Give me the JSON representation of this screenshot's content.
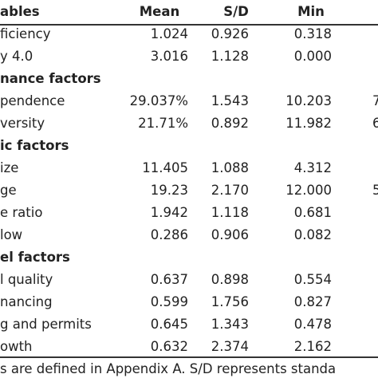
{
  "table": {
    "header": [
      "ables",
      "Mean",
      "S/D",
      "Min"
    ],
    "rows": [
      {
        "label": "ficiency",
        "cells": [
          "1.024",
          "0.926",
          "0.318"
        ]
      },
      {
        "label": "y 4.0",
        "cells": [
          "3.016",
          "1.128",
          "0.000"
        ]
      },
      {
        "section": "nance factors"
      },
      {
        "label": "pendence",
        "cells": [
          "29.037%",
          "1.543",
          "10.203"
        ],
        "extra": "7"
      },
      {
        "label": "versity",
        "cells": [
          "21.71%",
          "0.892",
          "11.982"
        ],
        "extra": "6"
      },
      {
        "section": "ic factors"
      },
      {
        "label": "ize",
        "cells": [
          "11.405",
          "1.088",
          "4.312"
        ]
      },
      {
        "label": "ge",
        "cells": [
          "19.23",
          "2.170",
          "12.000"
        ],
        "extra": "5"
      },
      {
        "label": "e ratio",
        "cells": [
          "1.942",
          "1.118",
          "0.681"
        ]
      },
      {
        "label": "low",
        "cells": [
          "0.286",
          "0.906",
          "0.082"
        ]
      },
      {
        "section": "el factors"
      },
      {
        "label": "l quality",
        "cells": [
          "0.637",
          "0.898",
          "0.554"
        ]
      },
      {
        "label": "nancing",
        "cells": [
          "0.599",
          "1.756",
          "0.827"
        ]
      },
      {
        "label": "g and permits",
        "cells": [
          "0.645",
          "1.343",
          "0.478"
        ]
      },
      {
        "label": "owth",
        "cells": [
          "0.632",
          "2.374",
          "2.162"
        ]
      }
    ],
    "footnote": "s are defined in Appendix A. S/D represents standa"
  }
}
